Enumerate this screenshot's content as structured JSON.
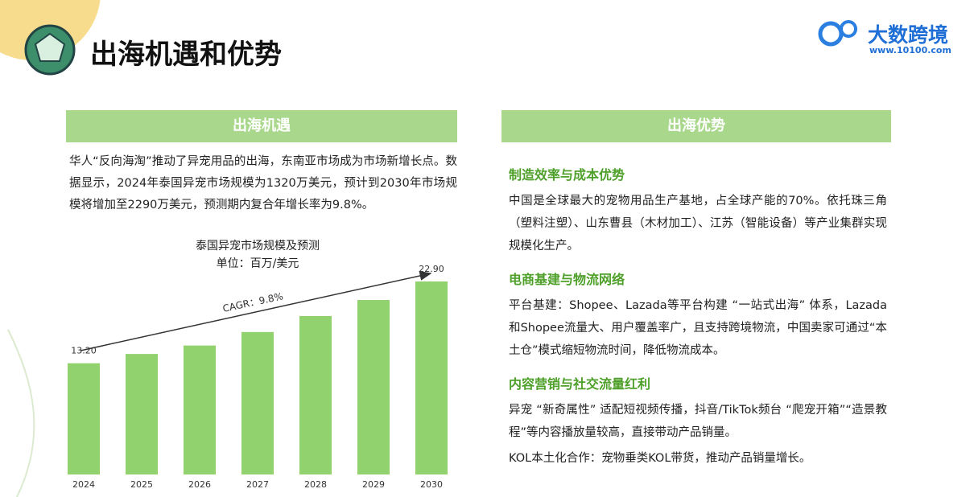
{
  "header": {
    "title": "出海机遇和优势",
    "logo_name": "大数跨境",
    "logo_url": "www.10100.com"
  },
  "left": {
    "heading": "出海机遇",
    "paragraph": "华人“反向海淘”推动了异宠用品的出海，东南亚市场成为市场新增长点。数据显示，2024年泰国异宠市场规模为1320万美元，预计到2030年市场规模将增加至2290万美元，预测期内复合年增长率为9.8%。"
  },
  "chart_data": {
    "type": "bar",
    "title": "泰国异宠市场规模及预测",
    "subtitle": "单位：百万/美元",
    "categories": [
      "2024",
      "2025",
      "2026",
      "2027",
      "2028",
      "2029",
      "2030"
    ],
    "values": [
      13.2,
      14.3,
      15.3,
      16.9,
      18.8,
      20.7,
      22.9
    ],
    "value_labels": [
      "13.20",
      null,
      null,
      null,
      null,
      null,
      "22.90"
    ],
    "color": "#92d26e",
    "annotation": "CAGR：9.8%"
  },
  "right": {
    "heading": "出海优势",
    "sections": [
      {
        "heading": "制造效率与成本优势",
        "paragraphs": [
          "中国是全球最大的宠物用品生产基地，占全球产能的70%。依托珠三角（塑料注塑）、山东曹县（木材加工）、江苏（智能设备）等产业集群实现规模化生产。"
        ]
      },
      {
        "heading": "电商基建与物流网络",
        "paragraphs": [
          "平台基建：Shopee、Lazada等平台构建 “一站式出海” 体系，Lazada和Shopee流量大、用户覆盖率广，且支持跨境物流，中国卖家可通过“本土仓”模式缩短物流时间，降低物流成本。"
        ]
      },
      {
        "heading": "内容营销与社交流量红利",
        "paragraphs": [
          "异宠 “新奇属性” 适配短视频传播，抖音/TikTok频台 “爬宠开箱”“造景教程”等内容播放量较高，直接带动产品销量。",
          "KOL本土化合作：宠物垂类KOL带货，推动产品销量增长。"
        ]
      }
    ]
  }
}
